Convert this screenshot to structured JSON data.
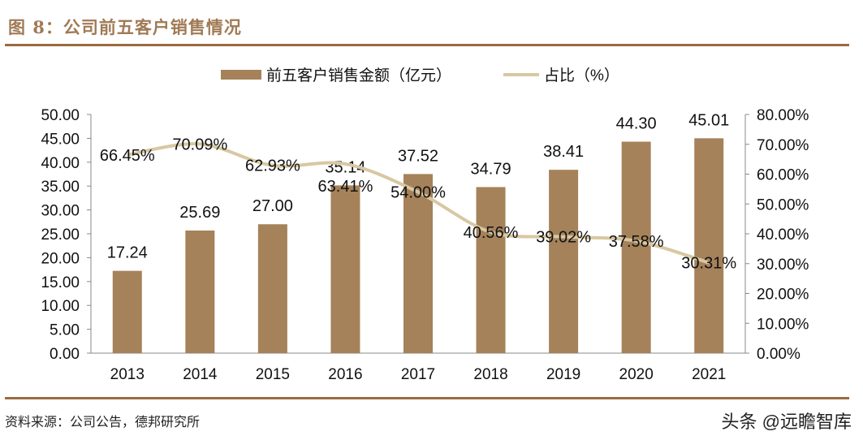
{
  "title": "图 8：公司前五客户销售情况",
  "source": "资料来源：公司公告，德邦研究所",
  "watermark": "头条 @远瞻智库",
  "chart_data": {
    "type": "bar+line",
    "categories": [
      "2013",
      "2014",
      "2015",
      "2016",
      "2017",
      "2018",
      "2019",
      "2020",
      "2021"
    ],
    "series": [
      {
        "name": "前五客户销售金额（亿元）",
        "type": "bar",
        "axis": "left",
        "color": "#a5825a",
        "values": [
          17.24,
          25.69,
          27.0,
          35.14,
          37.52,
          34.79,
          38.41,
          44.3,
          45.01
        ],
        "labels": [
          "17.24",
          "25.69",
          "27.00",
          "35.14",
          "37.52",
          "34.79",
          "38.41",
          "44.30",
          "45.01"
        ]
      },
      {
        "name": "占比（%）",
        "type": "line",
        "axis": "right",
        "color": "#d8c8a2",
        "values": [
          66.45,
          70.09,
          62.93,
          63.41,
          54.0,
          40.56,
          39.02,
          37.58,
          30.31
        ],
        "labels": [
          "66.45%",
          "70.09%",
          "62.93%",
          "63.41%",
          "54.00%",
          "40.56%",
          "39.02%",
          "37.58%",
          "30.31%"
        ]
      }
    ],
    "left_axis": {
      "ylim": [
        0,
        50
      ],
      "ticks": [
        "0.00",
        "5.00",
        "10.00",
        "15.00",
        "20.00",
        "25.00",
        "30.00",
        "35.00",
        "40.00",
        "45.00",
        "50.00"
      ]
    },
    "right_axis": {
      "ylim": [
        0,
        80
      ],
      "ticks": [
        "0.00%",
        "10.00%",
        "20.00%",
        "30.00%",
        "40.00%",
        "50.00%",
        "60.00%",
        "70.00%",
        "80.00%"
      ]
    },
    "legend": "top-center",
    "grid": false
  }
}
